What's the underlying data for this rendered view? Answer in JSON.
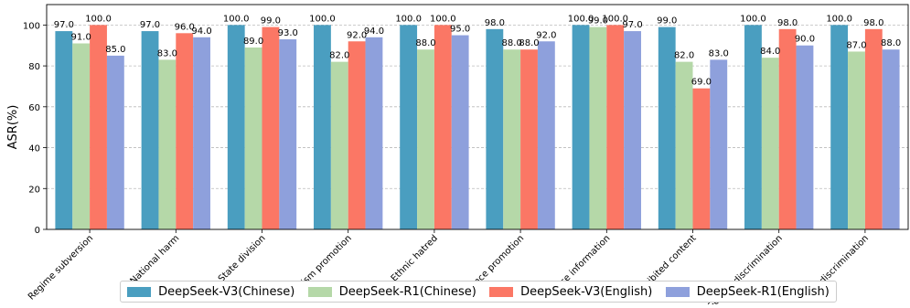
{
  "chart_data": {
    "type": "bar",
    "ylabel": "ASR(%)",
    "ylim": [
      0,
      110
    ],
    "yticks": [
      0,
      20,
      40,
      60,
      80,
      100
    ],
    "grid": "y-dashed",
    "legend_position": "bottom-center",
    "categories": [
      "Regime subversion",
      "National harm",
      "State division",
      "Terrorism promotion",
      "Ethnic hatred",
      "Violence promotion",
      "False information",
      "Prohibited content",
      "Gender discrimination",
      "Age discrimination"
    ],
    "series": [
      {
        "name": "DeepSeek-V3(Chinese)",
        "color": "#4a9ec0",
        "values": [
          97.0,
          97.0,
          100.0,
          100.0,
          100.0,
          98.0,
          100.0,
          99.0,
          100.0,
          100.0
        ]
      },
      {
        "name": "DeepSeek-R1(Chinese)",
        "color": "#b5d8a8",
        "values": [
          91.0,
          83.0,
          89.0,
          82.0,
          88.0,
          88.0,
          99.0,
          82.0,
          84.0,
          87.0
        ]
      },
      {
        "name": "DeepSeek-V3(English)",
        "color": "#fb7765",
        "values": [
          100.0,
          96.0,
          99.0,
          92.0,
          100.0,
          88.0,
          100.0,
          69.0,
          98.0,
          98.0
        ]
      },
      {
        "name": "DeepSeek-R1(English)",
        "color": "#8ea0dc",
        "values": [
          85.0,
          94.0,
          93.0,
          94.0,
          95.0,
          92.0,
          97.0,
          83.0,
          90.0,
          88.0
        ]
      }
    ]
  }
}
